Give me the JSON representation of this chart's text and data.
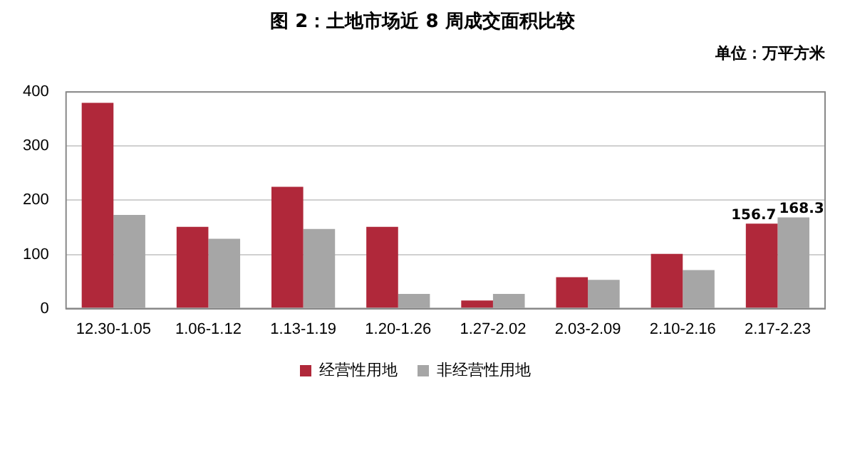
{
  "chart_data": {
    "type": "bar",
    "title": "图 2：土地市场近 8 周成交面积比较",
    "subtitle": "单位：万平方米",
    "categories": [
      "12.30-1.05",
      "1.06-1.12",
      "1.13-1.19",
      "1.20-1.26",
      "1.27-2.02",
      "2.03-2.09",
      "2.10-2.16",
      "2.17-2.23"
    ],
    "series": [
      {
        "name": "经营性用地",
        "color": "#b0283a",
        "values": [
          380,
          151,
          225,
          151,
          15,
          58,
          101,
          156.7
        ],
        "value_labels": [
          null,
          null,
          null,
          null,
          null,
          null,
          null,
          "156.7"
        ]
      },
      {
        "name": "非经营性用地",
        "color": "#a6a6a6",
        "values": [
          173,
          129,
          147,
          27,
          27,
          53,
          71,
          168.3
        ],
        "value_labels": [
          null,
          null,
          null,
          null,
          null,
          null,
          null,
          "168.3"
        ]
      }
    ],
    "ylim": [
      0,
      400
    ],
    "yticks": [
      0,
      100,
      200,
      300,
      400
    ],
    "grid": "y",
    "legend": "bottom"
  }
}
